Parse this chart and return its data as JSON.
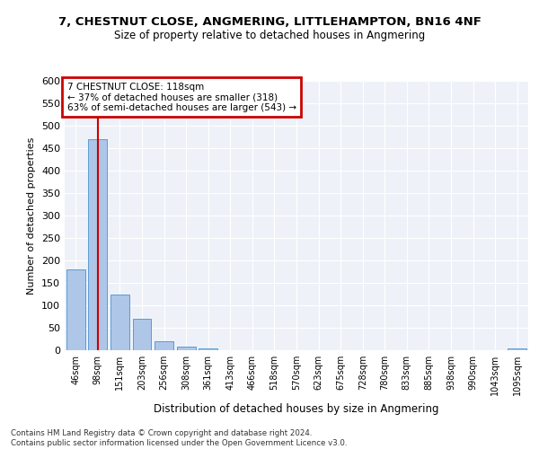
{
  "title1": "7, CHESTNUT CLOSE, ANGMERING, LITTLEHAMPTON, BN16 4NF",
  "title2": "Size of property relative to detached houses in Angmering",
  "xlabel": "Distribution of detached houses by size in Angmering",
  "ylabel": "Number of detached properties",
  "bar_labels": [
    "46sqm",
    "98sqm",
    "151sqm",
    "203sqm",
    "256sqm",
    "308sqm",
    "361sqm",
    "413sqm",
    "466sqm",
    "518sqm",
    "570sqm",
    "623sqm",
    "675sqm",
    "728sqm",
    "780sqm",
    "833sqm",
    "885sqm",
    "938sqm",
    "990sqm",
    "1043sqm",
    "1095sqm"
  ],
  "bar_values": [
    180,
    470,
    125,
    70,
    20,
    8,
    5,
    0,
    0,
    0,
    0,
    0,
    0,
    0,
    0,
    0,
    0,
    0,
    0,
    0,
    5
  ],
  "bar_color": "#aec6e8",
  "bar_edge_color": "#5b9bd5",
  "vline_x": 1,
  "vline_color": "#cc0000",
  "annotation_text": "7 CHESTNUT CLOSE: 118sqm\n← 37% of detached houses are smaller (318)\n63% of semi-detached houses are larger (543) →",
  "annotation_box_color": "#cc0000",
  "ylim": [
    0,
    600
  ],
  "yticks": [
    0,
    50,
    100,
    150,
    200,
    250,
    300,
    350,
    400,
    450,
    500,
    550,
    600
  ],
  "footer1": "Contains HM Land Registry data © Crown copyright and database right 2024.",
  "footer2": "Contains public sector information licensed under the Open Government Licence v3.0.",
  "bg_color": "#eef2f8"
}
